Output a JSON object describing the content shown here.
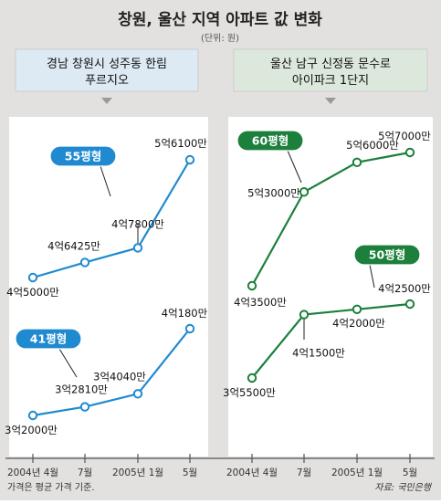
{
  "title": "창원, 울산 지역 아파트 값 변화",
  "unit": "(단위: 원)",
  "footnote": "가격은 평균 가격 기준.",
  "source": "자료: 국민은행",
  "colors": {
    "left_series": "#1f8ad0",
    "right_series": "#1c7f3c",
    "left_header": "#dde9f3",
    "right_header": "#dde8dc",
    "background": "#e3e1df",
    "arrow": "#9a9a9a"
  },
  "chart_data": [
    {
      "type": "line",
      "title": "경남 창원시 성주동 한림 푸르지오",
      "categories": [
        "2004년 4월",
        "7월",
        "2005년 1월",
        "5월"
      ],
      "value_unit": "만원",
      "ylim": [
        30000,
        62000
      ],
      "series": [
        {
          "name": "55평형",
          "values": [
            45000,
            46425,
            47800,
            56100
          ],
          "labels": [
            "4억5000만",
            "4억6425만",
            "4억7800만",
            "5억6100만"
          ]
        },
        {
          "name": "41평형",
          "values": [
            32000,
            32810,
            34040,
            40180
          ],
          "labels": [
            "3억2000만",
            "3억2810만",
            "3억4040만",
            "4억180만"
          ]
        }
      ]
    },
    {
      "type": "line",
      "title": "울산 남구 신정동 문수로 아이파크 1단지",
      "categories": [
        "2004년 4월",
        "7월",
        "2005년 1월",
        "5월"
      ],
      "value_unit": "만원",
      "ylim": [
        30000,
        62000
      ],
      "series": [
        {
          "name": "60평형",
          "values": [
            43500,
            53000,
            56000,
            57000
          ],
          "labels": [
            "4억3500만",
            "5억3000만",
            "5억6000만",
            "5억7000만"
          ]
        },
        {
          "name": "50평형",
          "values": [
            35500,
            41500,
            42000,
            42500
          ],
          "labels": [
            "3억5500만",
            "4억1500만",
            "4억2000만",
            "4억2500만"
          ]
        }
      ]
    }
  ]
}
